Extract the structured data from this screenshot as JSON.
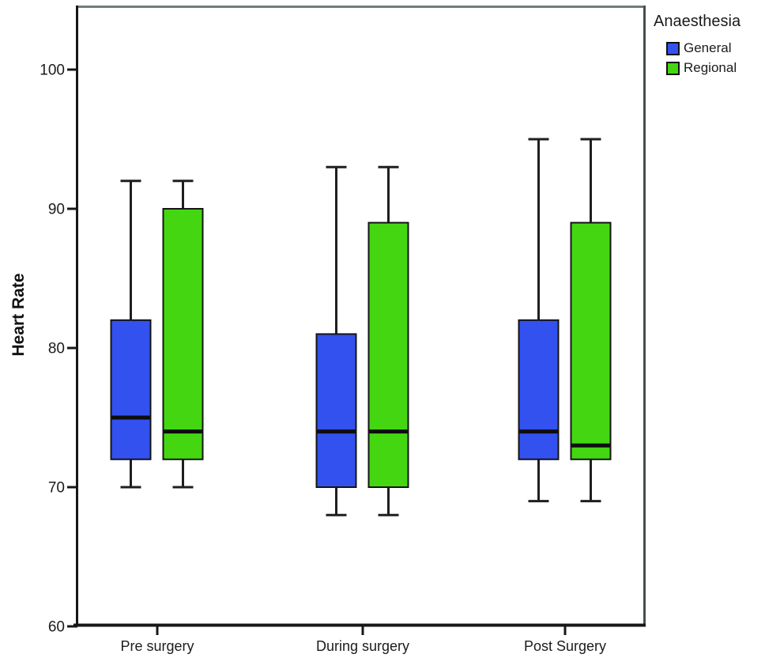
{
  "chart_data": {
    "type": "boxplot",
    "title": "",
    "xlabel": "",
    "ylabel": "Heart Rate",
    "ylim": [
      60,
      104.6
    ],
    "y_ticks": [
      60,
      70,
      80,
      90,
      100
    ],
    "grid": false,
    "legend_title": "Anaesthesia",
    "legend_position": "top-right-outside",
    "categories": [
      "Pre surgery",
      "During surgery",
      "Post Surgery"
    ],
    "series": [
      {
        "name": "General",
        "color": "#3351EE",
        "boxes": [
          {
            "category": "Pre surgery",
            "whisker_low": 70,
            "q1": 72,
            "median": 75,
            "q3": 82,
            "whisker_high": 92
          },
          {
            "category": "During surgery",
            "whisker_low": 68,
            "q1": 70,
            "median": 74,
            "q3": 81,
            "whisker_high": 93
          },
          {
            "category": "Post Surgery",
            "whisker_low": 69,
            "q1": 72,
            "median": 74,
            "q3": 82,
            "whisker_high": 95
          }
        ]
      },
      {
        "name": "Regional",
        "color": "#44D711",
        "boxes": [
          {
            "category": "Pre surgery",
            "whisker_low": 70,
            "q1": 72,
            "median": 74,
            "q3": 90,
            "whisker_high": 92
          },
          {
            "category": "During surgery",
            "whisker_low": 68,
            "q1": 70,
            "median": 74,
            "q3": 89,
            "whisker_high": 93
          },
          {
            "category": "Post Surgery",
            "whisker_low": 69,
            "q1": 72,
            "median": 73,
            "q3": 89,
            "whisker_high": 95
          }
        ]
      }
    ]
  }
}
